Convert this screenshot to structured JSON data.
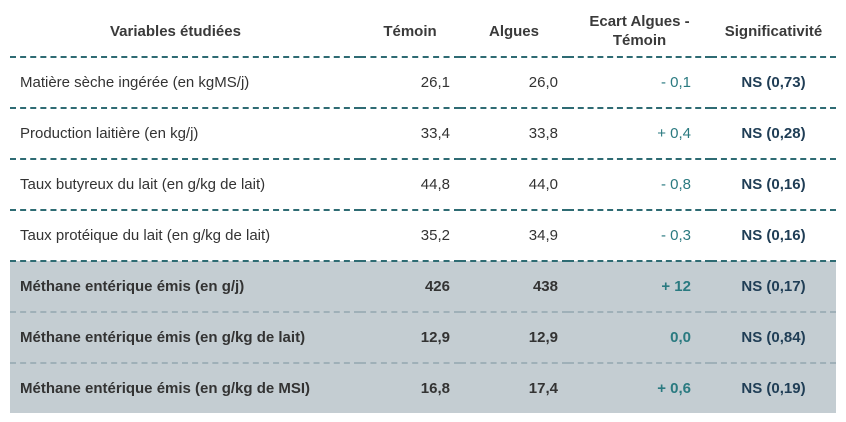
{
  "table": {
    "header": [
      "Variables étudiées",
      "Témoin",
      "Algues",
      "Ecart Algues - Témoin",
      "Significativité"
    ],
    "rows": [
      [
        "Matière sèche ingérée (en kgMS/j)",
        "26,1",
        "26,0",
        "- 0,1",
        "NS (0,73)"
      ],
      [
        "Production laitière (en kg/j)",
        "33,4",
        "33,8",
        "+ 0,4",
        "NS (0,28)"
      ],
      [
        "Taux butyreux du lait (en g/kg de lait)",
        "44,8",
        "44,0",
        "- 0,8",
        "NS (0,16)"
      ],
      [
        "Taux protéique du lait (en g/kg de lait)",
        "35,2",
        "34,9",
        "- 0,3",
        "NS (0,16)"
      ],
      [
        "Méthane entérique émis (en g/j)",
        "426",
        "438",
        "+ 12",
        "NS (0,17)"
      ],
      [
        "Méthane entérique émis (en g/kg de lait)",
        "12,9",
        "12,9",
        "0,0",
        "NS (0,84)"
      ],
      [
        "Méthane entérique émis (en g/kg de MSI)",
        "16,8",
        "17,4",
        "+ 0,6",
        "NS (0,19)"
      ]
    ]
  }
}
